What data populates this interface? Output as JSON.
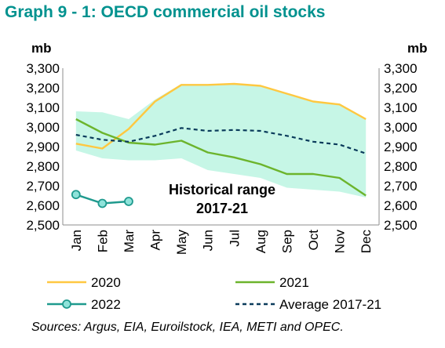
{
  "chart_data": {
    "type": "line",
    "title": "Graph 9 - 1: OECD commercial oil stocks",
    "ylabel_left": "mb",
    "ylabel_right": "mb",
    "ylim": [
      2500,
      3300
    ],
    "yticks": [
      "2,500",
      "2,600",
      "2,700",
      "2,800",
      "2,900",
      "3,000",
      "3,100",
      "3,200",
      "3,300"
    ],
    "categories": [
      "Jan",
      "Feb",
      "Mar",
      "Apr",
      "May",
      "Jun",
      "Jul",
      "Aug",
      "Sep",
      "Oct",
      "Nov",
      "Dec"
    ],
    "grid": false,
    "range_band": {
      "label_line1": "Historical range",
      "label_line2": "2017-21",
      "color": "#C6F6E6",
      "upper": [
        3080,
        3075,
        3040,
        3140,
        3220,
        3215,
        3220,
        3210,
        3170,
        3130,
        3120,
        3040
      ],
      "lower": [
        2880,
        2840,
        2830,
        2830,
        2840,
        2780,
        2760,
        2740,
        2690,
        2680,
        2670,
        2640
      ]
    },
    "series": [
      {
        "name": "2020",
        "color": "#FFC841",
        "markers": false,
        "dashed": false,
        "values": [
          2915,
          2890,
          2990,
          3130,
          3215,
          3215,
          3220,
          3210,
          3170,
          3130,
          3115,
          3040
        ]
      },
      {
        "name": "2021",
        "color": "#6CB42C",
        "markers": false,
        "dashed": false,
        "values": [
          3040,
          2970,
          2920,
          2910,
          2930,
          2870,
          2845,
          2810,
          2760,
          2760,
          2740,
          2650
        ]
      },
      {
        "name": "2022",
        "color": "#1F9A8E",
        "markers": true,
        "dashed": false,
        "values": [
          2655,
          2610,
          2620,
          null,
          null,
          null,
          null,
          null,
          null,
          null,
          null,
          null
        ]
      },
      {
        "name": "Average 2017-21",
        "color": "#0A3B5B",
        "markers": false,
        "dashed": true,
        "values": [
          2960,
          2935,
          2925,
          2955,
          2995,
          2980,
          2985,
          2980,
          2955,
          2925,
          2910,
          2865
        ]
      }
    ],
    "legend": {
      "placement": "bottom"
    }
  },
  "source_note": "Sources: Argus, EIA, Euroilstock, IEA, METI and OPEC."
}
